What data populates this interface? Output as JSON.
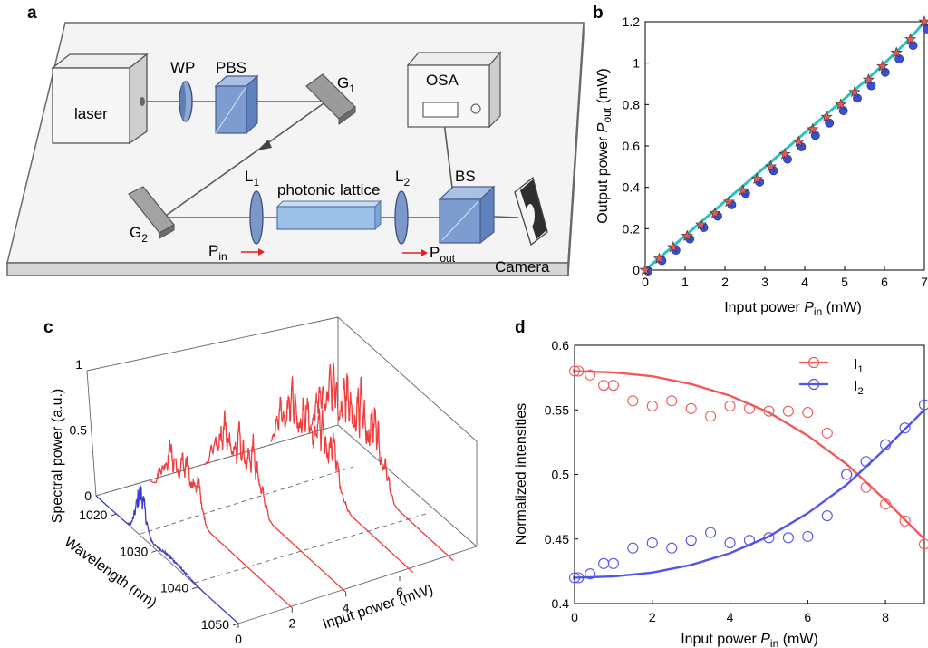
{
  "panels": {
    "a": {
      "letter": "a",
      "components": {
        "laser": "laser",
        "wp": "WP",
        "pbs": "PBS",
        "g1": "G",
        "g1_sub": "1",
        "osa": "OSA",
        "g2": "G",
        "g2_sub": "2",
        "l1": "L",
        "l1_sub": "1",
        "lattice": "photonic lattice",
        "l2": "L",
        "l2_sub": "2",
        "bs": "BS",
        "pin": "P",
        "pin_sub": "in",
        "pout": "P",
        "pout_sub": "out",
        "camera": "Camera"
      },
      "colors": {
        "table": "#f4f4f4",
        "optic_blue": "#6f93c9",
        "arrow_red": "#e02020"
      }
    },
    "b": {
      "letter": "b",
      "xlabel_prefix": "Input power ",
      "xlabel_var": "P",
      "xlabel_sub": "in",
      "xlabel_unit": " (mW)",
      "ylabel_prefix": "Output power ",
      "ylabel_var": "P",
      "ylabel_sub": "out",
      "ylabel_unit": " (mW)"
    },
    "c": {
      "letter": "c",
      "zlabel": "Spectral power (a.u.)",
      "wavelength_label": "Wavelength (nm)",
      "power_label": "Input power (mW)"
    },
    "d": {
      "letter": "d",
      "xlabel_prefix": "Input power ",
      "xlabel_var": "P",
      "xlabel_sub": "in",
      "xlabel_unit": " (mW)",
      "ylabel": "Normalized intensities"
    }
  },
  "chart_data": [
    {
      "id": "b",
      "type": "scatter",
      "xlim": [
        0,
        7
      ],
      "ylim": [
        0,
        1.2
      ],
      "xticks": [
        "0",
        "1",
        "2",
        "3",
        "4",
        "5",
        "6",
        "7"
      ],
      "yticks": [
        "0",
        "0.2",
        "0.4",
        "0.6",
        "0.8",
        "1",
        "1.2"
      ],
      "x": [
        0,
        0.35,
        0.7,
        1.05,
        1.4,
        1.75,
        2.1,
        2.45,
        2.8,
        3.15,
        3.5,
        3.85,
        4.2,
        4.55,
        4.9,
        5.25,
        5.6,
        5.95,
        6.3,
        6.65,
        7.0
      ],
      "series": [
        {
          "values": [
            0,
            0.05,
            0.1,
            0.155,
            0.21,
            0.265,
            0.32,
            0.375,
            0.43,
            0.485,
            0.54,
            0.6,
            0.655,
            0.715,
            0.775,
            0.835,
            0.895,
            0.96,
            1.025,
            1.09,
            1.17
          ],
          "color": "#3a4fd8",
          "marker": "circle"
        },
        {
          "values": [
            0,
            0.055,
            0.11,
            0.165,
            0.22,
            0.275,
            0.33,
            0.385,
            0.44,
            0.5,
            0.56,
            0.62,
            0.68,
            0.74,
            0.8,
            0.86,
            0.92,
            0.985,
            1.05,
            1.115,
            1.2
          ],
          "color": "#e05a5a",
          "marker": "star"
        },
        {
          "values": [
            0,
            0.058,
            0.116,
            0.174,
            0.232,
            0.29,
            0.348,
            0.406,
            0.464,
            0.522,
            0.58,
            0.638,
            0.696,
            0.754,
            0.812,
            0.87,
            0.928,
            0.99,
            1.055,
            1.12,
            1.2
          ],
          "color": "#2ec0c0",
          "marker": "line"
        }
      ]
    },
    {
      "id": "c",
      "type": "line",
      "wavelength_ticks": [
        "1020",
        "1030",
        "1040",
        "1050"
      ],
      "power_ticks": [
        "0",
        "2",
        "4",
        "6"
      ],
      "z_ticks": [
        "0",
        "0.5",
        "1"
      ],
      "series": [
        {
          "input_power_mW": 0,
          "color": "#3c3cc8"
        },
        {
          "input_power_mW": 2,
          "color": "#f03c3c"
        },
        {
          "input_power_mW": 4,
          "color": "#f03c3c"
        },
        {
          "input_power_mW": 6.5,
          "color": "#f03c3c"
        },
        {
          "input_power_mW": 8,
          "color": "#f03c3c"
        }
      ]
    },
    {
      "id": "d",
      "type": "scatter",
      "xlim": [
        0,
        9
      ],
      "ylim": [
        0.4,
        0.6
      ],
      "xticks": [
        "0",
        "2",
        "4",
        "6",
        "8"
      ],
      "yticks": [
        "0.4",
        "0.45",
        "0.5",
        "0.55",
        "0.6"
      ],
      "legend_position": "top-right",
      "series": [
        {
          "name": "I",
          "name_sub": "1",
          "color": "#ef5b5b",
          "x": [
            0,
            0.1,
            0.4,
            0.75,
            1.0,
            1.5,
            2.0,
            2.5,
            3.0,
            3.5,
            4.0,
            4.5,
            5.0,
            5.5,
            6.0,
            6.5,
            7.0,
            7.5,
            8.0,
            8.5,
            9.0
          ],
          "y": [
            0.58,
            0.58,
            0.577,
            0.569,
            0.569,
            0.557,
            0.553,
            0.557,
            0.551,
            0.545,
            0.553,
            0.551,
            0.549,
            0.549,
            0.548,
            0.532,
            0.5,
            0.49,
            0.477,
            0.464,
            0.446
          ],
          "fit_x": [
            0,
            1,
            2,
            3,
            4,
            5,
            6,
            7,
            8,
            9
          ],
          "fit_y": [
            0.58,
            0.579,
            0.576,
            0.57,
            0.561,
            0.548,
            0.53,
            0.508,
            0.48,
            0.45
          ]
        },
        {
          "name": "I",
          "name_sub": "2",
          "color": "#5353e8",
          "x": [
            0,
            0.1,
            0.4,
            0.75,
            1.0,
            1.5,
            2.0,
            2.5,
            3.0,
            3.5,
            4.0,
            4.5,
            5.0,
            5.5,
            6.0,
            6.5,
            7.0,
            7.5,
            8.0,
            8.5,
            9.0
          ],
          "y": [
            0.42,
            0.42,
            0.423,
            0.431,
            0.431,
            0.443,
            0.447,
            0.443,
            0.449,
            0.455,
            0.447,
            0.449,
            0.451,
            0.451,
            0.452,
            0.468,
            0.5,
            0.51,
            0.523,
            0.536,
            0.554
          ],
          "fit_x": [
            0,
            1,
            2,
            3,
            4,
            5,
            6,
            7,
            8,
            9
          ],
          "fit_y": [
            0.42,
            0.421,
            0.424,
            0.43,
            0.439,
            0.452,
            0.47,
            0.492,
            0.52,
            0.55
          ]
        }
      ]
    }
  ]
}
